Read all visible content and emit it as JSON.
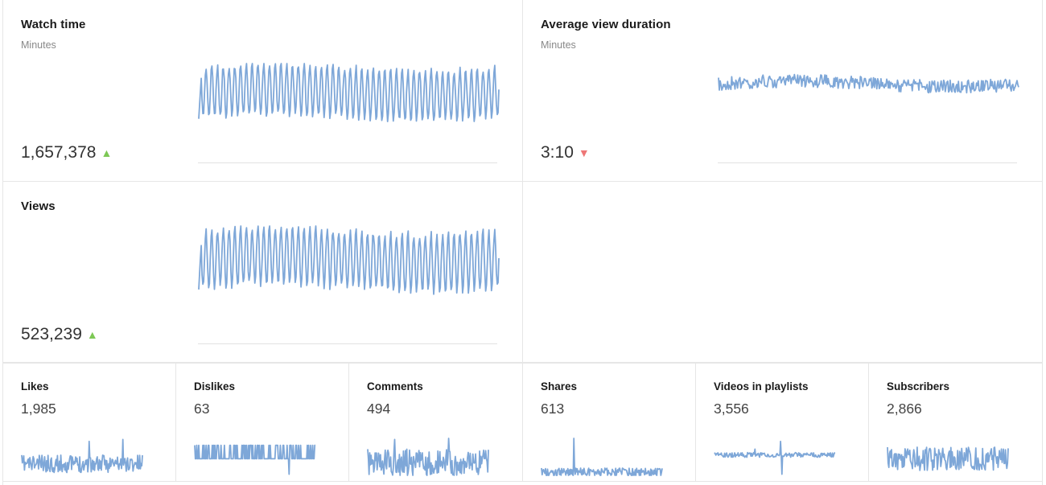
{
  "accent_line_color": "#7ea7d8",
  "up_color": "#7dc855",
  "down_color": "#ee7777",
  "cards": {
    "watch_time": {
      "title": "Watch time",
      "subtitle": "Minutes",
      "value": "1,657,378",
      "trend": "up",
      "trend_glyph": "▲"
    },
    "avg_view_duration": {
      "title": "Average view duration",
      "subtitle": "Minutes",
      "value": "3:10",
      "trend": "down",
      "trend_glyph": "▼"
    },
    "views": {
      "title": "Views",
      "value": "523,239",
      "trend": "up",
      "trend_glyph": "▲"
    }
  },
  "metrics": [
    {
      "title": "Likes",
      "value": "1,985"
    },
    {
      "title": "Dislikes",
      "value": "63"
    },
    {
      "title": "Comments",
      "value": "494"
    },
    {
      "title": "Shares",
      "value": "613"
    },
    {
      "title": "Videos in playlists",
      "value": "3,556"
    },
    {
      "title": "Subscribers",
      "value": "2,866"
    }
  ]
}
